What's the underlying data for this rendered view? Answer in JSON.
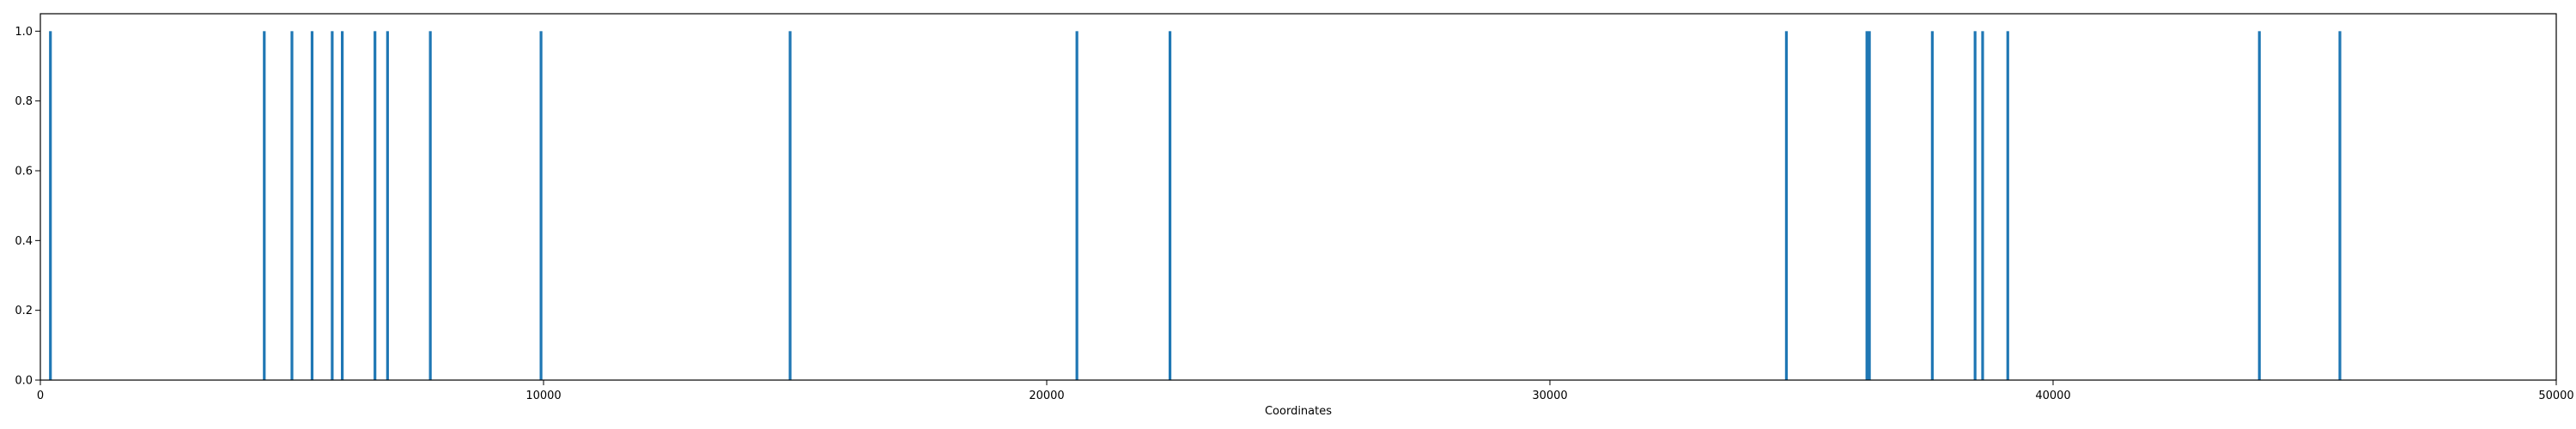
{
  "chart_data": {
    "type": "bar",
    "title": "",
    "xlabel": "Coordinates",
    "ylabel": "",
    "xlim": [
      0,
      50000
    ],
    "ylim": [
      0,
      1.05
    ],
    "grid": false,
    "legend": "none",
    "bar_color": "#1f77b4",
    "x_ticks": [
      0,
      10000,
      20000,
      30000,
      40000,
      50000
    ],
    "x_tick_labels": [
      "0",
      "10000",
      "20000",
      "30000",
      "40000",
      "50000"
    ],
    "y_ticks": [
      0,
      0.2,
      0.4,
      0.6,
      0.8,
      1.0
    ],
    "y_tick_labels": [
      "0.0",
      "0.2",
      "0.4",
      "0.6",
      "0.8",
      "1.0"
    ],
    "x": [
      200,
      4450,
      5000,
      5400,
      5800,
      6000,
      6650,
      6900,
      7750,
      9950,
      14900,
      20600,
      22450,
      34700,
      36300,
      36350,
      37600,
      38450,
      38600,
      39100,
      44100,
      45700
    ],
    "values": [
      1,
      1,
      1,
      1,
      1,
      1,
      1,
      1,
      1,
      1,
      1,
      1,
      1,
      1,
      1,
      1,
      1,
      1,
      1,
      1,
      1,
      1
    ]
  }
}
